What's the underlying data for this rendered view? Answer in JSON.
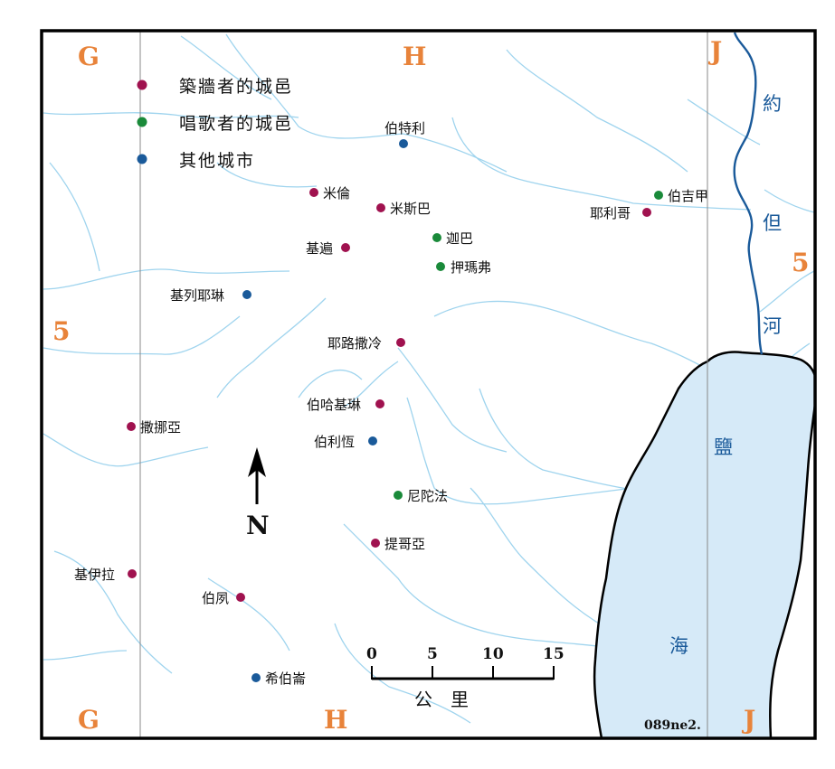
{
  "colors": {
    "wall_builders": "#a0124f",
    "singers": "#1a8a3a",
    "other": "#1a5a9a",
    "grid_label": "#e8833a",
    "stream": "#9fd4ee",
    "sea": "#d6eaf8"
  },
  "legend": [
    {
      "label": "築牆者的城邑",
      "category": "wall_builders"
    },
    {
      "label": "唱歌者的城邑",
      "category": "singers"
    },
    {
      "label": "其他城市",
      "category": "other"
    }
  ],
  "grid": {
    "columns": [
      "G",
      "H",
      "J"
    ],
    "row": "5"
  },
  "places": [
    {
      "name": "伯特利",
      "category": "other"
    },
    {
      "name": "米倫",
      "category": "wall_builders"
    },
    {
      "name": "米斯巴",
      "category": "wall_builders"
    },
    {
      "name": "伯吉甲",
      "category": "singers"
    },
    {
      "name": "耶利哥",
      "category": "wall_builders"
    },
    {
      "name": "迦巴",
      "category": "singers"
    },
    {
      "name": "基遍",
      "category": "wall_builders"
    },
    {
      "name": "押瑪弗",
      "category": "singers"
    },
    {
      "name": "基列耶琳",
      "category": "other"
    },
    {
      "name": "耶路撒冷",
      "category": "wall_builders"
    },
    {
      "name": "伯哈基琳",
      "category": "wall_builders"
    },
    {
      "name": "撒挪亞",
      "category": "wall_builders"
    },
    {
      "name": "伯利恆",
      "category": "other"
    },
    {
      "name": "尼陀法",
      "category": "singers"
    },
    {
      "name": "提哥亞",
      "category": "wall_builders"
    },
    {
      "name": "基伊拉",
      "category": "wall_builders"
    },
    {
      "name": "伯夙",
      "category": "wall_builders"
    },
    {
      "name": "希伯崙",
      "category": "other"
    }
  ],
  "water": {
    "river": [
      "約",
      "但",
      "河"
    ],
    "sea": [
      "鹽",
      "海"
    ]
  },
  "scale": {
    "ticks": [
      "0",
      "5",
      "10",
      "15"
    ],
    "unit": "公　里"
  },
  "north": "N",
  "map_code": "089ne2."
}
